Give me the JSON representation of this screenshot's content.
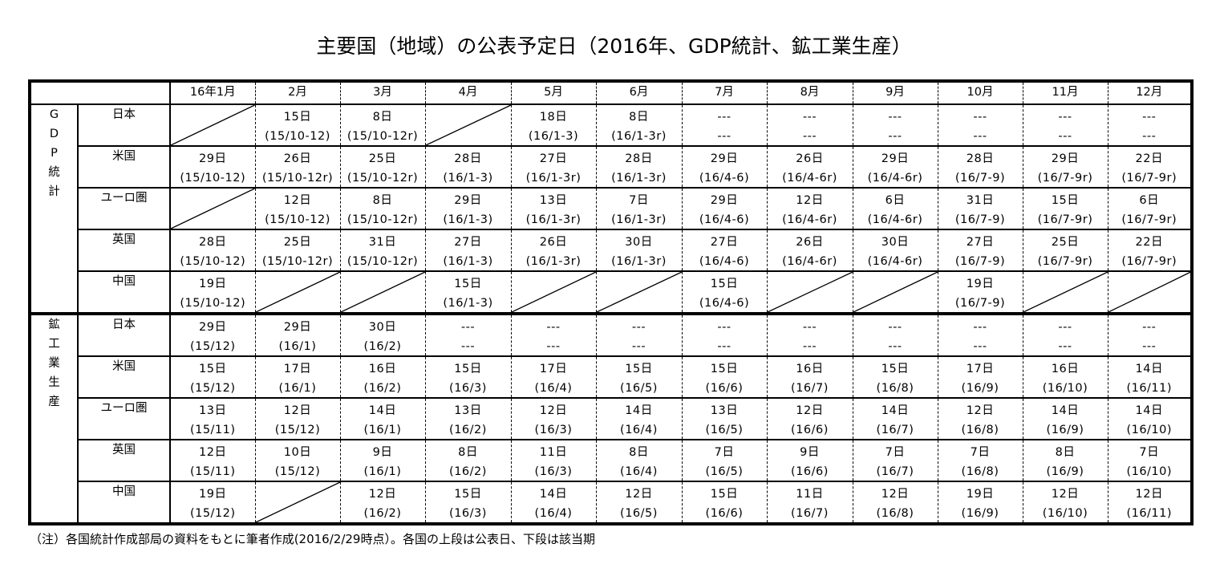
{
  "title": "主要国（地域）の公表予定日（2016年、GDP統計、鉱工業生産）",
  "months": [
    "16年1月",
    "2月",
    "3月",
    "4月",
    "5月",
    "6月",
    "7月",
    "8月",
    "9月",
    "10月",
    "11月",
    "12月"
  ],
  "sections": [
    {
      "label": "GDP統計",
      "label_chars": [
        "G",
        "D",
        "P",
        "統",
        "計"
      ],
      "rows": [
        {
          "country": "日本",
          "cells": [
            null,
            {
              "date": "15日",
              "period": "(15/10-12)"
            },
            {
              "date": "8日",
              "period": "(15/10-12r)"
            },
            null,
            {
              "date": "18日",
              "period": "(16/1-3)"
            },
            {
              "date": "8日",
              "period": "(16/1-3r)"
            },
            {
              "date": "---",
              "period": "---"
            },
            {
              "date": "---",
              "period": "---"
            },
            {
              "date": "---",
              "period": "---"
            },
            {
              "date": "---",
              "period": "---"
            },
            {
              "date": "---",
              "period": "---"
            },
            {
              "date": "---",
              "period": "---"
            }
          ]
        },
        {
          "country": "米国",
          "cells": [
            {
              "date": "29日",
              "period": "(15/10-12)"
            },
            {
              "date": "26日",
              "period": "(15/10-12r)"
            },
            {
              "date": "25日",
              "period": "(15/10-12r)"
            },
            {
              "date": "28日",
              "period": "(16/1-3)"
            },
            {
              "date": "27日",
              "period": "(16/1-3r)"
            },
            {
              "date": "28日",
              "period": "(16/1-3r)"
            },
            {
              "date": "29日",
              "period": "(16/4-6)"
            },
            {
              "date": "26日",
              "period": "(16/4-6r)"
            },
            {
              "date": "29日",
              "period": "(16/4-6r)"
            },
            {
              "date": "28日",
              "period": "(16/7-9)"
            },
            {
              "date": "29日",
              "period": "(16/7-9r)"
            },
            {
              "date": "22日",
              "period": "(16/7-9r)"
            }
          ]
        },
        {
          "country": "ユーロ圏",
          "cells": [
            null,
            {
              "date": "12日",
              "period": "(15/10-12)"
            },
            {
              "date": "8日",
              "period": "(15/10-12r)"
            },
            {
              "date": "29日",
              "period": "(16/1-3)"
            },
            {
              "date": "13日",
              "period": "(16/1-3r)"
            },
            {
              "date": "7日",
              "period": "(16/1-3r)"
            },
            {
              "date": "29日",
              "period": "(16/4-6)"
            },
            {
              "date": "12日",
              "period": "(16/4-6r)"
            },
            {
              "date": "6日",
              "period": "(16/4-6r)"
            },
            {
              "date": "31日",
              "period": "(16/7-9)"
            },
            {
              "date": "15日",
              "period": "(16/7-9r)"
            },
            {
              "date": "6日",
              "period": "(16/7-9r)"
            }
          ]
        },
        {
          "country": "英国",
          "cells": [
            {
              "date": "28日",
              "period": "(15/10-12)"
            },
            {
              "date": "25日",
              "period": "(15/10-12r)"
            },
            {
              "date": "31日",
              "period": "(15/10-12r)"
            },
            {
              "date": "27日",
              "period": "(16/1-3)"
            },
            {
              "date": "26日",
              "period": "(16/1-3r)"
            },
            {
              "date": "30日",
              "period": "(16/1-3r)"
            },
            {
              "date": "27日",
              "period": "(16/4-6)"
            },
            {
              "date": "26日",
              "period": "(16/4-6r)"
            },
            {
              "date": "30日",
              "period": "(16/4-6r)"
            },
            {
              "date": "27日",
              "period": "(16/7-9)"
            },
            {
              "date": "25日",
              "period": "(16/7-9r)"
            },
            {
              "date": "22日",
              "period": "(16/7-9r)"
            }
          ]
        },
        {
          "country": "中国",
          "cells": [
            {
              "date": "19日",
              "period": "(15/10-12)"
            },
            null,
            null,
            {
              "date": "15日",
              "period": "(16/1-3)"
            },
            null,
            null,
            {
              "date": "15日",
              "period": "(16/4-6)"
            },
            null,
            null,
            {
              "date": "19日",
              "period": "(16/7-9)"
            },
            null,
            null
          ]
        }
      ]
    },
    {
      "label": "鉱工業生産",
      "label_chars": [
        "鉱",
        "工",
        "業",
        "生",
        "産"
      ],
      "rows": [
        {
          "country": "日本",
          "cells": [
            {
              "date": "29日",
              "period": "(15/12)"
            },
            {
              "date": "29日",
              "period": "(16/1)"
            },
            {
              "date": "30日",
              "period": "(16/2)"
            },
            {
              "date": "---",
              "period": "---"
            },
            {
              "date": "---",
              "period": "---"
            },
            {
              "date": "---",
              "period": "---"
            },
            {
              "date": "---",
              "period": "---"
            },
            {
              "date": "---",
              "period": "---"
            },
            {
              "date": "---",
              "period": "---"
            },
            {
              "date": "---",
              "period": "---"
            },
            {
              "date": "---",
              "period": "---"
            },
            {
              "date": "---",
              "period": "---"
            }
          ]
        },
        {
          "country": "米国",
          "cells": [
            {
              "date": "15日",
              "period": "(15/12)"
            },
            {
              "date": "17日",
              "period": "(16/1)"
            },
            {
              "date": "16日",
              "period": "(16/2)"
            },
            {
              "date": "15日",
              "period": "(16/3)"
            },
            {
              "date": "17日",
              "period": "(16/4)"
            },
            {
              "date": "15日",
              "period": "(16/5)"
            },
            {
              "date": "15日",
              "period": "(16/6)"
            },
            {
              "date": "16日",
              "period": "(16/7)"
            },
            {
              "date": "15日",
              "period": "(16/8)"
            },
            {
              "date": "17日",
              "period": "(16/9)"
            },
            {
              "date": "16日",
              "period": "(16/10)"
            },
            {
              "date": "14日",
              "period": "(16/11)"
            }
          ]
        },
        {
          "country": "ユーロ圏",
          "cells": [
            {
              "date": "13日",
              "period": "(15/11)"
            },
            {
              "date": "12日",
              "period": "(15/12)"
            },
            {
              "date": "14日",
              "period": "(16/1)"
            },
            {
              "date": "13日",
              "period": "(16/2)"
            },
            {
              "date": "12日",
              "period": "(16/3)"
            },
            {
              "date": "14日",
              "period": "(16/4)"
            },
            {
              "date": "13日",
              "period": "(16/5)"
            },
            {
              "date": "12日",
              "period": "(16/6)"
            },
            {
              "date": "14日",
              "period": "(16/7)"
            },
            {
              "date": "12日",
              "period": "(16/8)"
            },
            {
              "date": "14日",
              "period": "(16/9)"
            },
            {
              "date": "14日",
              "period": "(16/10)"
            }
          ]
        },
        {
          "country": "英国",
          "cells": [
            {
              "date": "12日",
              "period": "(15/11)"
            },
            {
              "date": "10日",
              "period": "(15/12)"
            },
            {
              "date": "9日",
              "period": "(16/1)"
            },
            {
              "date": "8日",
              "period": "(16/2)"
            },
            {
              "date": "11日",
              "period": "(16/3)"
            },
            {
              "date": "8日",
              "period": "(16/4)"
            },
            {
              "date": "7日",
              "period": "(16/5)"
            },
            {
              "date": "9日",
              "period": "(16/6)"
            },
            {
              "date": "7日",
              "period": "(16/7)"
            },
            {
              "date": "7日",
              "period": "(16/8)"
            },
            {
              "date": "8日",
              "period": "(16/9)"
            },
            {
              "date": "7日",
              "period": "(16/10)"
            }
          ]
        },
        {
          "country": "中国",
          "cells": [
            {
              "date": "19日",
              "period": "(15/12)"
            },
            null,
            {
              "date": "12日",
              "period": "(16/2)"
            },
            {
              "date": "15日",
              "period": "(16/3)"
            },
            {
              "date": "14日",
              "period": "(16/4)"
            },
            {
              "date": "12日",
              "period": "(16/5)"
            },
            {
              "date": "15日",
              "period": "(16/6)"
            },
            {
              "date": "11日",
              "period": "(16/7)"
            },
            {
              "date": "12日",
              "period": "(16/8)"
            },
            {
              "date": "19日",
              "period": "(16/9)"
            },
            {
              "date": "12日",
              "period": "(16/10)"
            },
            {
              "date": "12日",
              "period": "(16/11)"
            }
          ]
        }
      ]
    }
  ],
  "note": "（注）各国統計作成部局の資料をもとに筆者作成(2016/2/29時点）。各国の上段は公表日、下段は該当期"
}
